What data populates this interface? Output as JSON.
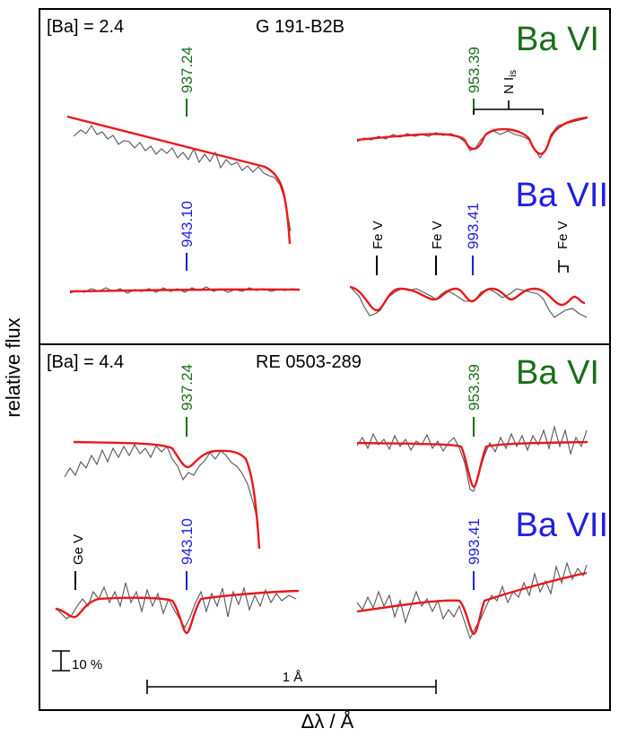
{
  "axes": {
    "ylabel": "relative flux",
    "xlabel": "Δλ / Å"
  },
  "scale_bars": {
    "flux_label": "10 %",
    "flux_value_percent": 10,
    "wavelength_label": "1 Å",
    "wavelength_value_angstrom": 1
  },
  "colors": {
    "ba6": "#1a6e1a",
    "ba7": "#2020e0",
    "model": "#e8191c",
    "observed": "#555555",
    "other": "#000000"
  },
  "chart_data": [
    {
      "type": "line",
      "star": "G 191-B2B",
      "abundance_label": "[Ba] = 2.4",
      "ion_labels": [
        "Ba VI",
        "Ba VII"
      ],
      "series": [
        {
          "name": "",
          "ion": "Ba VI",
          "line_label": "937.24",
          "x": [
            -0.6,
            -0.4,
            -0.2,
            0.0,
            0.2,
            0.4,
            0.45,
            0.5,
            0.55
          ],
          "model": [
            1.0,
            0.985,
            0.97,
            0.955,
            0.94,
            0.925,
            0.9,
            0.8,
            0.6
          ],
          "observed": [
            0.98,
            0.975,
            0.96,
            0.95,
            0.94,
            0.925,
            0.9,
            0.82,
            0.62
          ]
        },
        {
          "name": "",
          "ion": "Ba VI",
          "line_label": "953.39",
          "x": [
            -0.6,
            -0.4,
            -0.2,
            0.0,
            0.2,
            0.4,
            0.6
          ],
          "model": [
            0.97,
            0.975,
            0.98,
            0.945,
            0.97,
            0.93,
            0.985
          ],
          "observed": [
            0.965,
            0.97,
            0.975,
            0.95,
            0.965,
            0.93,
            0.985
          ]
        },
        {
          "name": "",
          "ion": "Ba VII",
          "line_label": "943.10",
          "x": [
            -0.6,
            -0.3,
            0.0,
            0.3,
            0.6
          ],
          "model": [
            0.995,
            0.997,
            0.998,
            0.999,
            0.999
          ],
          "observed": [
            0.993,
            0.998,
            1.0,
            0.998,
            0.999
          ]
        },
        {
          "name": "",
          "ion": "Ba VII",
          "line_label": "993.41",
          "x": [
            -0.6,
            -0.45,
            -0.3,
            -0.15,
            0.0,
            0.15,
            0.3,
            0.45,
            0.6
          ],
          "model": [
            0.99,
            0.965,
            0.985,
            0.975,
            0.985,
            0.975,
            0.985,
            0.965,
            0.98
          ],
          "observed": [
            0.985,
            0.96,
            0.985,
            0.975,
            0.985,
            0.975,
            0.98,
            0.955,
            0.965
          ]
        }
      ],
      "other_lines": [
        {
          "label": "N I",
          "sub": "is"
        },
        {
          "label": "Fe V"
        },
        {
          "label": "Fe V"
        },
        {
          "label": "Fe V"
        }
      ]
    },
    {
      "type": "line",
      "star": "RE 0503-289",
      "abundance_label": "[Ba] = 4.4",
      "ion_labels": [
        "Ba VI",
        "Ba VII"
      ],
      "series": [
        {
          "name": "",
          "ion": "Ba VI",
          "line_label": "937.24",
          "x": [
            -0.6,
            -0.4,
            -0.2,
            0.0,
            0.2,
            0.3,
            0.35,
            0.4
          ],
          "model": [
            1.0,
            0.999,
            0.995,
            0.97,
            0.99,
            0.97,
            0.85,
            0.65
          ],
          "observed": [
            0.94,
            0.98,
            0.985,
            0.96,
            0.97,
            0.96,
            0.85,
            0.65
          ]
        },
        {
          "name": "",
          "ion": "Ba VI",
          "line_label": "953.39",
          "x": [
            -0.6,
            -0.3,
            -0.1,
            0.0,
            0.1,
            0.3,
            0.6
          ],
          "model": [
            1.0,
            1.0,
            0.995,
            0.94,
            0.995,
            1.0,
            1.0
          ],
          "observed": [
            1.0,
            1.005,
            0.99,
            0.94,
            0.995,
            1.01,
            1.005
          ]
        },
        {
          "name": "",
          "ion": "Ba VII",
          "line_label": "943.10",
          "x": [
            -0.6,
            -0.4,
            -0.2,
            -0.05,
            0.0,
            0.05,
            0.2,
            0.4,
            0.6
          ],
          "model": [
            0.985,
            0.995,
            0.997,
            0.99,
            0.95,
            0.99,
            0.997,
            1.0,
            1.0
          ],
          "observed": [
            0.985,
            0.99,
            0.995,
            0.985,
            0.955,
            0.985,
            0.99,
            0.99,
            0.995
          ]
        },
        {
          "name": "",
          "ion": "Ba VII",
          "line_label": "993.41",
          "x": [
            -0.6,
            -0.3,
            -0.05,
            0.0,
            0.05,
            0.3,
            0.6
          ],
          "model": [
            0.98,
            0.99,
            0.99,
            0.945,
            0.995,
            1.005,
            1.015
          ],
          "observed": [
            0.975,
            0.985,
            0.99,
            0.95,
            0.99,
            1.005,
            1.02
          ]
        }
      ],
      "other_lines": [
        {
          "label": "Ge V"
        }
      ]
    }
  ]
}
